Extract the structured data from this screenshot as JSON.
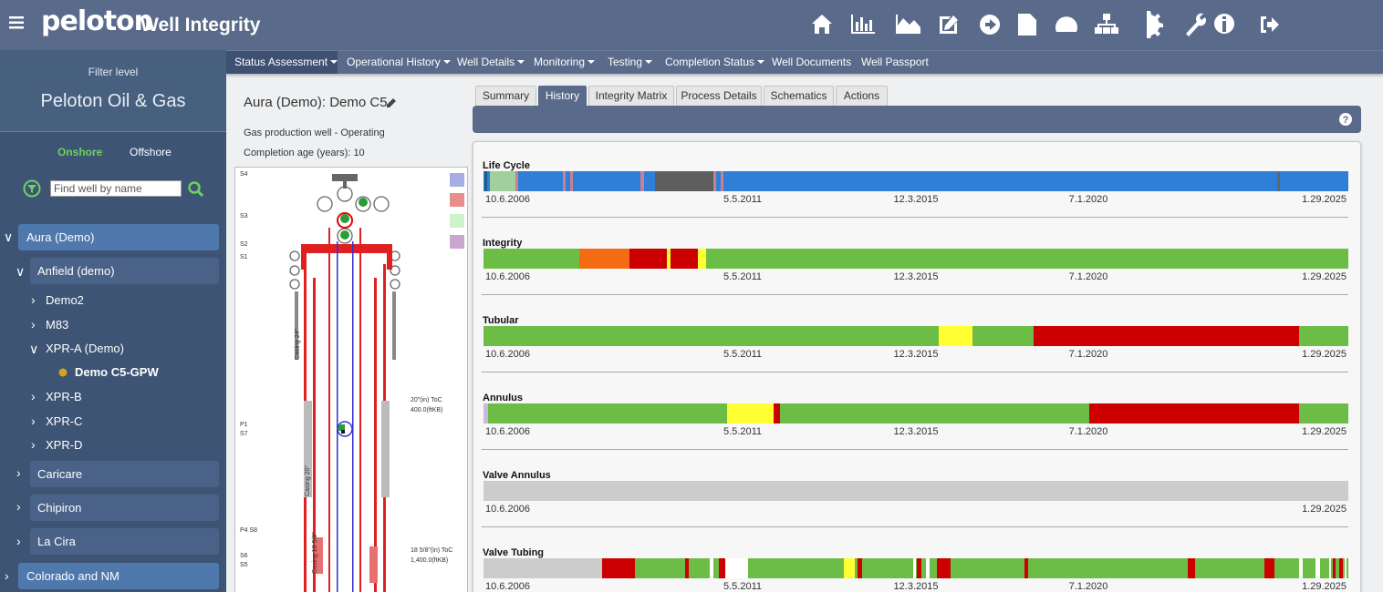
{
  "header": {
    "logo": "peloton",
    "title": "Well Integrity",
    "help": "?"
  },
  "nav": [
    "Status Assessment",
    "Operational History",
    "Well Details",
    "Monitoring",
    "Testing",
    "Completion Status",
    "Well Documents",
    "Well Passport"
  ],
  "sidebar": {
    "filter_label": "Filter level",
    "company": "Peloton Oil & Gas",
    "tabs": [
      "Onshore",
      "Offshore"
    ],
    "search_placeholder": "Find well by name",
    "tree": [
      "Aura (Demo)",
      "Anfield (demo)",
      "Demo2",
      "M83",
      "XPR-A (Demo)",
      "Demo C5-GPW",
      "XPR-B",
      "XPR-C",
      "XPR-D",
      "Caricare",
      "Chipiron",
      "La Cira",
      "Colorado and NM"
    ]
  },
  "well": {
    "title": "Aura (Demo): Demo C5",
    "type": "Gas production well - Operating",
    "completion_age": "Completion age (years): 10"
  },
  "schematic": {
    "labels": [
      "S4",
      "S3",
      "S2",
      "S1",
      "P1",
      "S7",
      "P4 S8",
      "S6",
      "S5"
    ],
    "casings": [
      "Casing 24\"",
      "Casing 20\"",
      "Casing 18 5/8\""
    ],
    "notes": [
      "20\"(in) ToC",
      "400.0(ftKB)",
      "18 5/8\"(in) ToC",
      "1,400.0(ftKB)"
    ]
  },
  "tabs": [
    "Summary",
    "History",
    "Integrity Matrix",
    "Process Details",
    "Schematics",
    "Actions"
  ],
  "history": {
    "rows": [
      {
        "name": "Life Cycle",
        "dates": [
          "10.6.2006",
          "5.5.2011",
          "12.3.2015",
          "7.1.2020",
          "1.29.2025"
        ]
      },
      {
        "name": "Integrity",
        "dates": [
          "10.6.2006",
          "5.5.2011",
          "12.3.2015",
          "7.1.2020",
          "1.29.2025"
        ]
      },
      {
        "name": "Tubular",
        "dates": [
          "10.6.2006",
          "5.5.2011",
          "12.3.2015",
          "7.1.2020",
          "1.29.2025"
        ]
      },
      {
        "name": "Annulus",
        "dates": [
          "10.6.2006",
          "5.5.2011",
          "12.3.2015",
          "7.1.2020",
          "1.29.2025"
        ]
      },
      {
        "name": "Valve Annulus",
        "dates": [
          "10.6.2006",
          "1.29.2025"
        ]
      },
      {
        "name": "Valve Tubing",
        "dates": [
          "10.6.2006",
          "5.5.2011",
          "12.3.2015",
          "7.1.2020",
          "1.29.2025"
        ]
      }
    ]
  }
}
